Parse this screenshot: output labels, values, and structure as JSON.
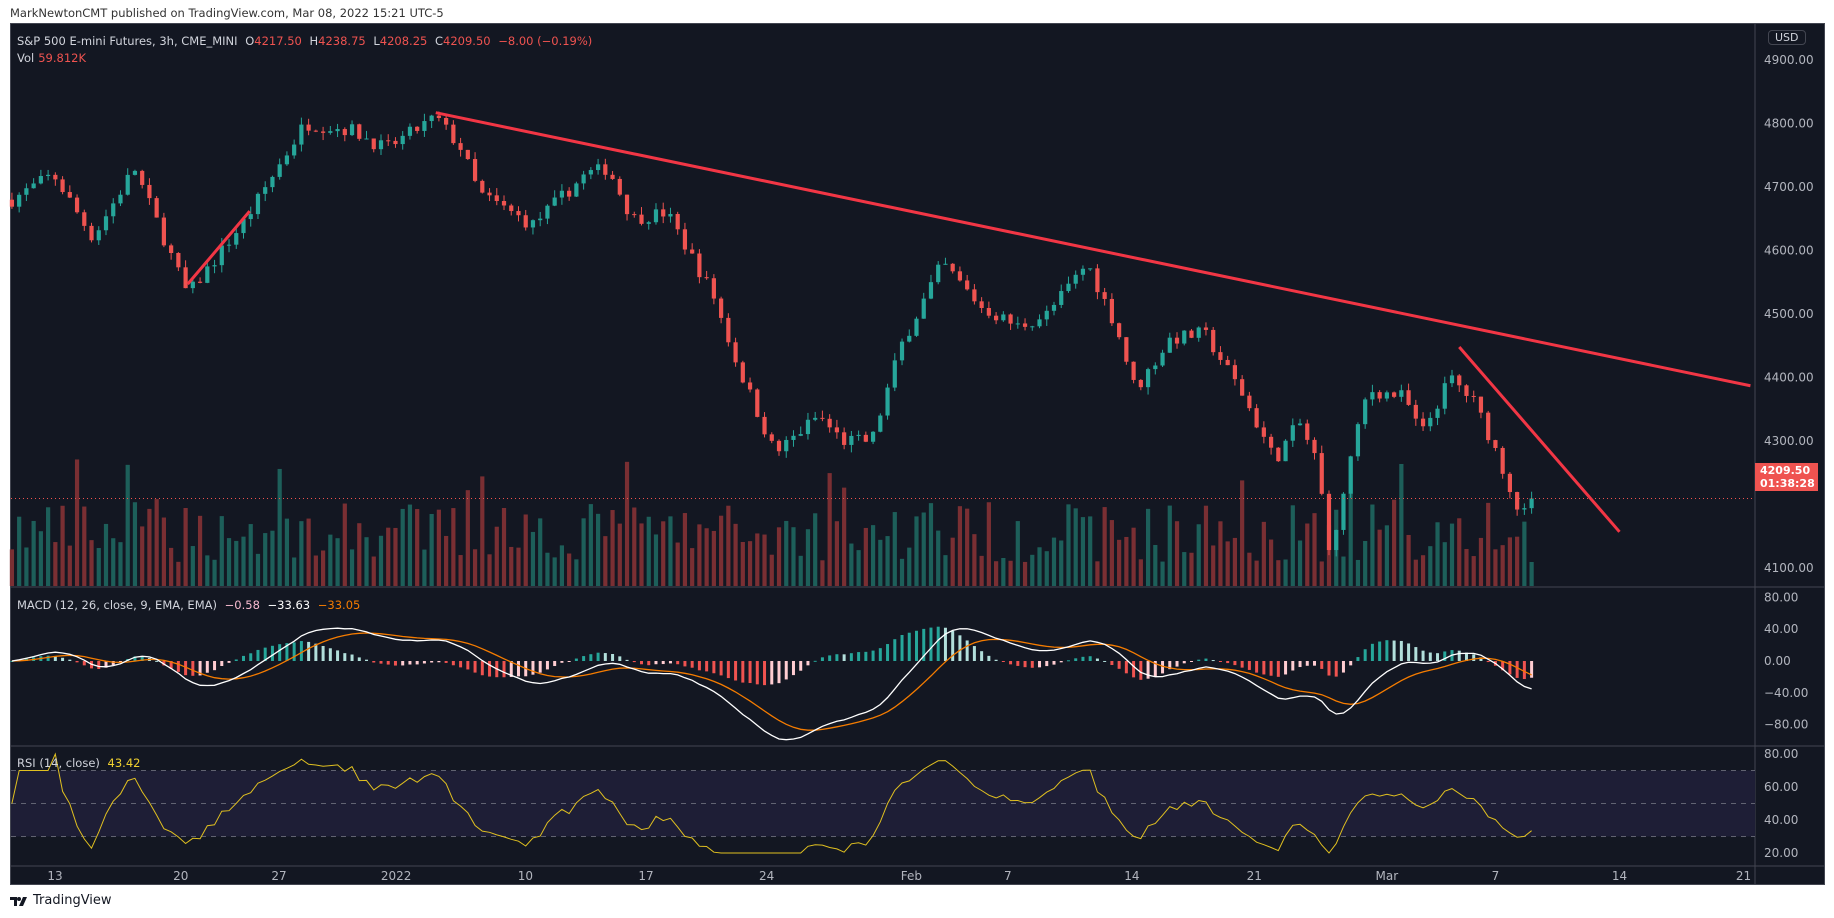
{
  "publisher_line": "MarkNewtonCMT published on TradingView.com, Mar 08, 2022 15:21 UTC-5",
  "footer_brand": "TradingView",
  "symbol": {
    "title": "S&P 500 E-mini Futures, 3h, CME_MINI",
    "o_label": "O",
    "o": "4217.50",
    "h_label": "H",
    "h": "4238.75",
    "l_label": "L",
    "l": "4208.25",
    "c_label": "C",
    "c": "4209.50",
    "change": "−8.00 (−0.19%)",
    "vol_label": "Vol",
    "vol": "59.812K"
  },
  "currency": "USD",
  "last_price": {
    "price": "4209.50",
    "countdown": "01:38:28",
    "value": 4209.5
  },
  "macd_legend": {
    "title": "MACD (12, 26, close, 9, EMA, EMA)",
    "hist": "−0.58",
    "macd": "−33.63",
    "signal": "−33.05"
  },
  "rsi_legend": {
    "title": "RSI (14, close)",
    "value": "43.42"
  },
  "colors": {
    "bg": "#131722",
    "up": "#26a69a",
    "down": "#ef5350",
    "trendline": "#f23645",
    "macd": "#ffffff",
    "signal": "#f57c00",
    "rsi": "#e0c020",
    "rsi_band": "#1e1e36"
  },
  "chart_data": [
    {
      "type": "candlestick",
      "title": "S&P 500 E-mini Futures, 3h",
      "x_unit": "days since Dec 13, 2021",
      "price_path": [
        [
          -2.5,
          4680
        ],
        [
          -0.1,
          4720
        ],
        [
          2.2,
          4620
        ],
        [
          4.6,
          4730
        ],
        [
          7.7,
          4530
        ],
        [
          11.1,
          4650
        ],
        [
          14.5,
          4800
        ],
        [
          17.2,
          4790
        ],
        [
          19.2,
          4760
        ],
        [
          22.1,
          4810
        ],
        [
          23.6,
          4760
        ],
        [
          24.6,
          4690
        ],
        [
          27.7,
          4640
        ],
        [
          30.8,
          4720
        ],
        [
          32.1,
          4730
        ],
        [
          33.5,
          4650
        ],
        [
          35.5,
          4660
        ],
        [
          38.2,
          4530
        ],
        [
          39.6,
          4420
        ],
        [
          41.8,
          4280
        ],
        [
          44.3,
          4340
        ],
        [
          45.7,
          4300
        ],
        [
          47.4,
          4300
        ],
        [
          49.1,
          4450
        ],
        [
          51.5,
          4580
        ],
        [
          53.8,
          4510
        ],
        [
          55.9,
          4480
        ],
        [
          57.6,
          4500
        ],
        [
          59.9,
          4580
        ],
        [
          61.6,
          4480
        ],
        [
          62.7,
          4380
        ],
        [
          64.7,
          4460
        ],
        [
          66.7,
          4470
        ],
        [
          68.8,
          4380
        ],
        [
          70.8,
          4270
        ],
        [
          72.2,
          4330
        ],
        [
          73.2,
          4270
        ],
        [
          74.1,
          4110
        ],
        [
          74.9,
          4240
        ],
        [
          76.2,
          4380
        ],
        [
          78.3,
          4370
        ],
        [
          79.3,
          4310
        ],
        [
          81.0,
          4400
        ],
        [
          82.4,
          4360
        ],
        [
          83.7,
          4280
        ],
        [
          85.1,
          4180
        ],
        [
          86.1,
          4209.5
        ]
      ],
      "y_ticks": [
        "4900.00",
        "4800.00",
        "4700.00",
        "4600.00",
        "4500.00",
        "4400.00",
        "4300.00",
        "4100.00"
      ],
      "y_tick_values": [
        4900,
        4800,
        4700,
        4600,
        4500,
        4400,
        4300,
        4100
      ],
      "ylim": [
        4010,
        4940
      ],
      "trendlines": [
        [
          [
            22.1,
            4817
          ],
          [
            98.4,
            4387
          ]
        ],
        [
          [
            7.7,
            4547
          ],
          [
            11.3,
            4662
          ]
        ],
        [
          [
            81.5,
            4448
          ],
          [
            90.8,
            4157
          ]
        ]
      ],
      "x_ticks": [
        {
          "label": "13",
          "d": 0
        },
        {
          "label": "20",
          "d": 7.3
        },
        {
          "label": "27",
          "d": 13
        },
        {
          "label": "2022",
          "d": 19.8
        },
        {
          "label": "10",
          "d": 27.3
        },
        {
          "label": "17",
          "d": 34.3
        },
        {
          "label": "24",
          "d": 41.3
        },
        {
          "label": "Feb",
          "d": 49.7
        },
        {
          "label": "7",
          "d": 55.3
        },
        {
          "label": "14",
          "d": 62.5
        },
        {
          "label": "21",
          "d": 69.6
        },
        {
          "label": "Mar",
          "d": 77.3
        },
        {
          "label": "7",
          "d": 83.6
        },
        {
          "label": "14",
          "d": 90.8
        },
        {
          "label": "21",
          "d": 98
        }
      ]
    },
    {
      "type": "bar",
      "title": "MACD",
      "y_ticks": [
        "80.00",
        "40.00",
        "0.00",
        "−40.00",
        "−80.00"
      ],
      "y_tick_values": [
        80,
        40,
        0,
        -40,
        -80
      ],
      "ylim": [
        -80,
        80
      ]
    },
    {
      "type": "line",
      "title": "RSI",
      "y_ticks": [
        "80.00",
        "60.00",
        "40.00",
        "20.00"
      ],
      "y_tick_values": [
        80,
        60,
        40,
        20
      ],
      "band": [
        30,
        70
      ],
      "ylim": [
        20,
        80
      ]
    }
  ]
}
